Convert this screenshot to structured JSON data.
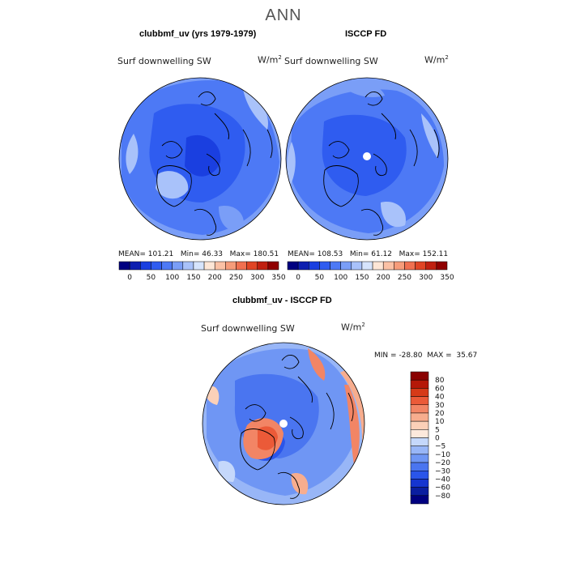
{
  "title": "ANN",
  "chart_data": [
    {
      "type": "heatmap",
      "projection": "north polar stereographic",
      "title": "clubbmf_uv (yrs 1979-1979)",
      "variable": "Surf downwelling SW",
      "units": "W/m",
      "units_exp": "2",
      "stats": {
        "mean_label": "MEAN=",
        "mean": "101.21",
        "min_label": "Min=",
        "min": "46.33",
        "max_label": "Max=",
        "max": "180.51"
      },
      "colorbar": {
        "levels": [
          25,
          50,
          75,
          100,
          125,
          150,
          175,
          200,
          225,
          250,
          275,
          300,
          325,
          350
        ],
        "tick_labels": [
          "0",
          "50",
          "100",
          "150",
          "200",
          "250",
          "300",
          "350"
        ],
        "colors": [
          "#000080",
          "#0d1fb0",
          "#1a3fe0",
          "#2f5cf0",
          "#4d79f5",
          "#7a9ef7",
          "#a9c2fa",
          "#d6e4fc",
          "#fde6d6",
          "#fbc1a5",
          "#f69c7a",
          "#f07050",
          "#e04525",
          "#c02010",
          "#900000"
        ]
      }
    },
    {
      "type": "heatmap",
      "projection": "north polar stereographic",
      "title": "ISCCP FD",
      "variable": "Surf downwelling SW",
      "units": "W/m",
      "units_exp": "2",
      "stats": {
        "mean_label": "MEAN=",
        "mean": "108.53",
        "min_label": "Min=",
        "min": "61.12",
        "max_label": "Max=",
        "max": "152.11"
      },
      "colorbar": {
        "levels": [
          25,
          50,
          75,
          100,
          125,
          150,
          175,
          200,
          225,
          250,
          275,
          300,
          325,
          350
        ],
        "tick_labels": [
          "0",
          "50",
          "100",
          "150",
          "200",
          "250",
          "300",
          "350"
        ],
        "colors": [
          "#000080",
          "#0d1fb0",
          "#1a3fe0",
          "#2f5cf0",
          "#4d79f5",
          "#7a9ef7",
          "#a9c2fa",
          "#d6e4fc",
          "#fde6d6",
          "#fbc1a5",
          "#f69c7a",
          "#f07050",
          "#e04525",
          "#c02010",
          "#900000"
        ]
      }
    },
    {
      "type": "heatmap",
      "projection": "north polar stereographic",
      "title": "clubbmf_uv - ISCCP FD",
      "variable": "Surf downwelling SW",
      "units": "W/m",
      "units_exp": "2",
      "stats": {
        "min_label": "MIN =",
        "min": "-28.80",
        "max_label": "MAX =",
        "max": "35.67"
      },
      "colorbar": {
        "levels": [
          -80,
          -60,
          -40,
          -30,
          -20,
          -10,
          -5,
          0,
          5,
          10,
          20,
          30,
          40,
          60,
          80
        ],
        "tick_labels": [
          "80",
          "60",
          "40",
          "30",
          "20",
          "10",
          "5",
          "0",
          "−5",
          "−10",
          "−20",
          "−30",
          "−40",
          "−60",
          "−80"
        ],
        "colors": [
          "#000080",
          "#0a1ea0",
          "#1535d0",
          "#2a55ea",
          "#4a75f0",
          "#6f96f4",
          "#98b6f7",
          "#c5d8fb",
          "#fde9dc",
          "#fbd0b8",
          "#f7ad8e",
          "#f28565",
          "#eb5a38",
          "#d63a18",
          "#b51808",
          "#8a0000"
        ]
      }
    }
  ]
}
